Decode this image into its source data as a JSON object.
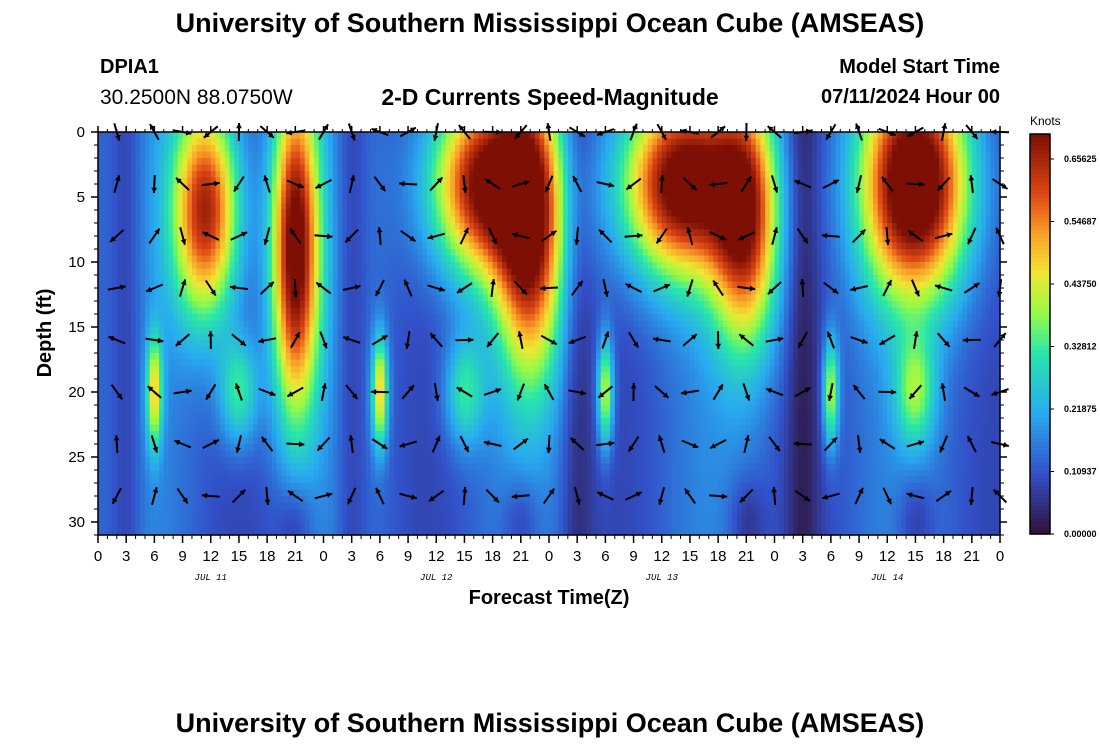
{
  "header": {
    "title": "University of Southern Mississippi Ocean Cube (AMSEAS)",
    "station_id": "DPIA1",
    "coords": "30.2500N  88.0750W",
    "subtitle": "2-D Currents Speed-Magnitude",
    "model_start_label": "Model Start Time",
    "model_start_value": "07/11/2024 Hour 00"
  },
  "footer": {
    "title": "University of Southern Mississippi Ocean Cube (AMSEAS)"
  },
  "chart_data": {
    "type": "heatmap",
    "title": "2-D Currents Speed-Magnitude",
    "xlabel": "Forecast Time(Z)",
    "ylabel": "Depth (ft)",
    "xlim": [
      0,
      96
    ],
    "ylim": [
      0,
      31
    ],
    "x_ticks": [
      0,
      3,
      6,
      9,
      12,
      15,
      18,
      21,
      24,
      27,
      30,
      33,
      36,
      39,
      42,
      45,
      48,
      51,
      54,
      57,
      60,
      63,
      66,
      69,
      72,
      75,
      78,
      81,
      84,
      87,
      90,
      93,
      96
    ],
    "x_tick_labels": [
      "0",
      "3",
      "6",
      "9",
      "12",
      "15",
      "18",
      "21",
      "0",
      "3",
      "6",
      "9",
      "12",
      "15",
      "18",
      "21",
      "0",
      "3",
      "6",
      "9",
      "12",
      "15",
      "18",
      "21",
      "0",
      "3",
      "6",
      "9",
      "12",
      "15",
      "18",
      "21",
      "0"
    ],
    "y_ticks": [
      0,
      5,
      10,
      15,
      20,
      25,
      30
    ],
    "y_tick_labels": [
      "0",
      "5",
      "10",
      "15",
      "20",
      "25",
      "30"
    ],
    "date_labels": [
      {
        "hour": 12,
        "label": "JUL 11"
      },
      {
        "hour": 36,
        "label": "JUL 12"
      },
      {
        "hour": 60,
        "label": "JUL 13"
      },
      {
        "hour": 84,
        "label": "JUL 14"
      }
    ],
    "colorbar": {
      "label": "Knots",
      "min": 0.0,
      "max": 0.7,
      "tick_labels": [
        "0.65625",
        "0.54687",
        "0.43750",
        "0.32812",
        "0.21875",
        "0.10937",
        "0.00000"
      ],
      "tick_values": [
        0.65625,
        0.546875,
        0.4375,
        0.328125,
        0.21875,
        0.109375,
        0.0
      ]
    },
    "arrow_depths_ft": [
      0,
      4,
      8,
      12,
      16,
      20,
      24,
      28
    ],
    "arrow_hours": [
      2,
      6,
      9,
      12,
      15,
      18,
      21,
      24,
      27,
      30,
      33,
      36,
      39,
      42,
      45,
      48,
      51,
      54,
      57,
      60,
      63,
      66,
      69,
      72,
      75,
      78,
      81,
      84,
      87,
      90,
      93,
      96
    ],
    "speed_features_note": "estimated speed field in knots",
    "speed_features": [
      {
        "hour": 11.5,
        "depth": 6,
        "sigma_h": 2.5,
        "sigma_d": 6,
        "amp": 0.55
      },
      {
        "hour": 21,
        "depth": 9,
        "sigma_h": 1.8,
        "sigma_d": 9,
        "amp": 0.62
      },
      {
        "hour": 41,
        "depth": 4,
        "sigma_h": 4.0,
        "sigma_d": 5,
        "amp": 0.58
      },
      {
        "hour": 46,
        "depth": 8,
        "sigma_h": 2.5,
        "sigma_d": 8,
        "amp": 0.5
      },
      {
        "hour": 62,
        "depth": 4,
        "sigma_h": 4.5,
        "sigma_d": 5,
        "amp": 0.62
      },
      {
        "hour": 69,
        "depth": 7,
        "sigma_h": 2.5,
        "sigma_d": 7,
        "amp": 0.48
      },
      {
        "hour": 87,
        "depth": 4,
        "sigma_h": 4.0,
        "sigma_d": 6,
        "amp": 0.68
      },
      {
        "hour": 6,
        "depth": 20,
        "sigma_h": 0.6,
        "sigma_d": 3,
        "amp": 0.32
      },
      {
        "hour": 30,
        "depth": 20,
        "sigma_h": 0.6,
        "sigma_d": 3,
        "amp": 0.36
      },
      {
        "hour": 54,
        "depth": 20,
        "sigma_h": 0.6,
        "sigma_d": 3,
        "amp": 0.32
      },
      {
        "hour": 78,
        "depth": 20,
        "sigma_h": 0.6,
        "sigma_d": 3,
        "amp": 0.3
      },
      {
        "hour": 15,
        "depth": 20,
        "sigma_h": 1.5,
        "sigma_d": 3,
        "amp": 0.22
      },
      {
        "hour": 39,
        "depth": 20,
        "sigma_h": 1.5,
        "sigma_d": 3,
        "amp": 0.2
      },
      {
        "hour": 87,
        "depth": 20,
        "sigma_h": 1.5,
        "sigma_d": 3,
        "amp": 0.22
      }
    ]
  }
}
